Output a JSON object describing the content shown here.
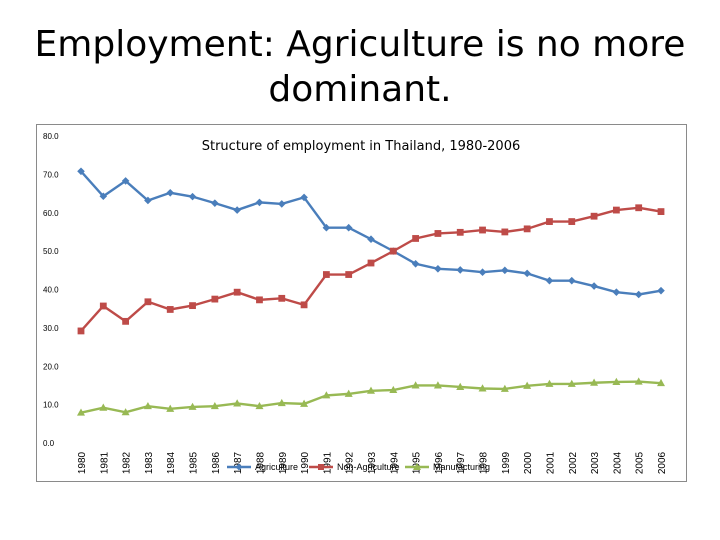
{
  "slide": {
    "title_line1": "Employment: Agriculture is no more",
    "title_line2": "dominant."
  },
  "chart_data": {
    "type": "line",
    "title": "Structure of employment in Thailand, 1980-2006",
    "xlabel": "",
    "ylabel": "",
    "ylim": [
      0,
      80
    ],
    "yticks": [
      "0.0",
      "10.0",
      "20.0",
      "30.0",
      "40.0",
      "50.0",
      "60.0",
      "70.0",
      "80.0"
    ],
    "grid": false,
    "legend_position": "bottom",
    "categories": [
      "1980",
      "1981",
      "1982",
      "1983",
      "1984",
      "1985",
      "1986",
      "1987",
      "1988",
      "1989",
      "1990",
      "1991",
      "1992",
      "1993",
      "1994",
      "1995",
      "1996",
      "1997",
      "1998",
      "1999",
      "2000",
      "2001",
      "2002",
      "2003",
      "2004",
      "2005",
      "2006"
    ],
    "series": [
      {
        "name": "Agriculture",
        "color": "#4a7ebb",
        "marker": "diamond",
        "values": [
          70.8,
          64.3,
          68.3,
          63.2,
          65.2,
          64.2,
          62.5,
          60.7,
          62.7,
          62.3,
          64.0,
          56.1,
          56.1,
          53.1,
          50.0,
          46.7,
          45.4,
          45.1,
          44.5,
          45.0,
          44.2,
          42.3,
          42.3,
          40.9,
          39.3,
          38.7,
          39.7
        ]
      },
      {
        "name": "Non-Agriculture",
        "color": "#be4b48",
        "marker": "square",
        "values": [
          29.2,
          35.7,
          31.7,
          36.8,
          34.8,
          35.8,
          37.5,
          39.3,
          37.3,
          37.7,
          36.0,
          43.9,
          43.9,
          46.9,
          50.0,
          53.3,
          54.6,
          54.9,
          55.5,
          55.0,
          55.8,
          57.7,
          57.7,
          59.1,
          60.7,
          61.3,
          60.3
        ]
      },
      {
        "name": "Manufacturing",
        "color": "#98b954",
        "marker": "triangle",
        "values": [
          7.9,
          9.2,
          8.0,
          9.6,
          8.9,
          9.4,
          9.6,
          10.3,
          9.6,
          10.4,
          10.2,
          12.4,
          12.8,
          13.6,
          13.8,
          15.0,
          15.0,
          14.6,
          14.2,
          14.1,
          14.9,
          15.4,
          15.4,
          15.7,
          15.9,
          16.0,
          15.6
        ]
      }
    ]
  }
}
